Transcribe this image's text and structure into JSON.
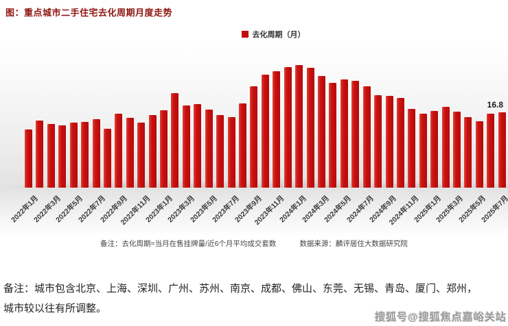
{
  "header": {
    "title": "图：重点城市二手住宅去化周期月度走势"
  },
  "chart_data": {
    "type": "bar",
    "title": "重点城市二手住宅去化周期月度走势",
    "legend": [
      {
        "label": "去化周期（月）",
        "color": "#c00d0d"
      }
    ],
    "legend_position": "top-center",
    "bar_color": "#c50e0e",
    "grid": false,
    "ylim": [
      0,
      28
    ],
    "xtick_step": 2,
    "categories": [
      "2022年1月",
      "2022年2月",
      "2022年3月",
      "2022年4月",
      "2022年5月",
      "2022年6月",
      "2022年7月",
      "2022年8月",
      "2022年9月",
      "2022年10月",
      "2022年11月",
      "2022年12月",
      "2023年1月",
      "2023年2月",
      "2023年3月",
      "2023年4月",
      "2023年5月",
      "2023年6月",
      "2023年7月",
      "2023年8月",
      "2023年9月",
      "2023年10月",
      "2023年11月",
      "2023年12月",
      "2024年1月",
      "2024年2月",
      "2024年3月",
      "2024年4月",
      "2024年5月",
      "2024年6月",
      "2024年7月",
      "2024年8月",
      "2024年9月",
      "2024年10月",
      "2024年11月",
      "2024年12月",
      "2025年1月",
      "2025年2月",
      "2025年3月",
      "2025年4月",
      "2025年5月",
      "2025年6月",
      "2025年7月"
    ],
    "values": [
      13.0,
      15.0,
      14.3,
      13.9,
      14.5,
      14.7,
      15.3,
      13.1,
      16.5,
      15.6,
      14.6,
      16.3,
      17.3,
      21.1,
      18.4,
      18.7,
      17.4,
      16.3,
      15.8,
      18.9,
      22.7,
      25.3,
      26.1,
      27.0,
      27.4,
      26.8,
      25.0,
      23.5,
      24.2,
      23.9,
      22.7,
      20.6,
      20.5,
      20.0,
      17.6,
      16.6,
      17.2,
      18.1,
      17.0,
      15.7,
      14.9,
      16.6,
      16.8
    ],
    "annotations": [
      {
        "text": "16.8",
        "category": "2025年7月"
      }
    ]
  },
  "notes": {
    "definition": "备注：去化周期=当月在售挂牌量/近6个月平均成交套数",
    "source": "数据来源：麟评居住大数据研究院"
  },
  "footer": {
    "line1": "备注：城市包含北京、上海、深圳、广州、苏州、南京、成都、佛山、东莞、无锡、青岛、厦门、郑州，",
    "line2": "城市较以往有所调整。",
    "watermark": "搜狐号@搜狐焦点嘉峪关站"
  }
}
